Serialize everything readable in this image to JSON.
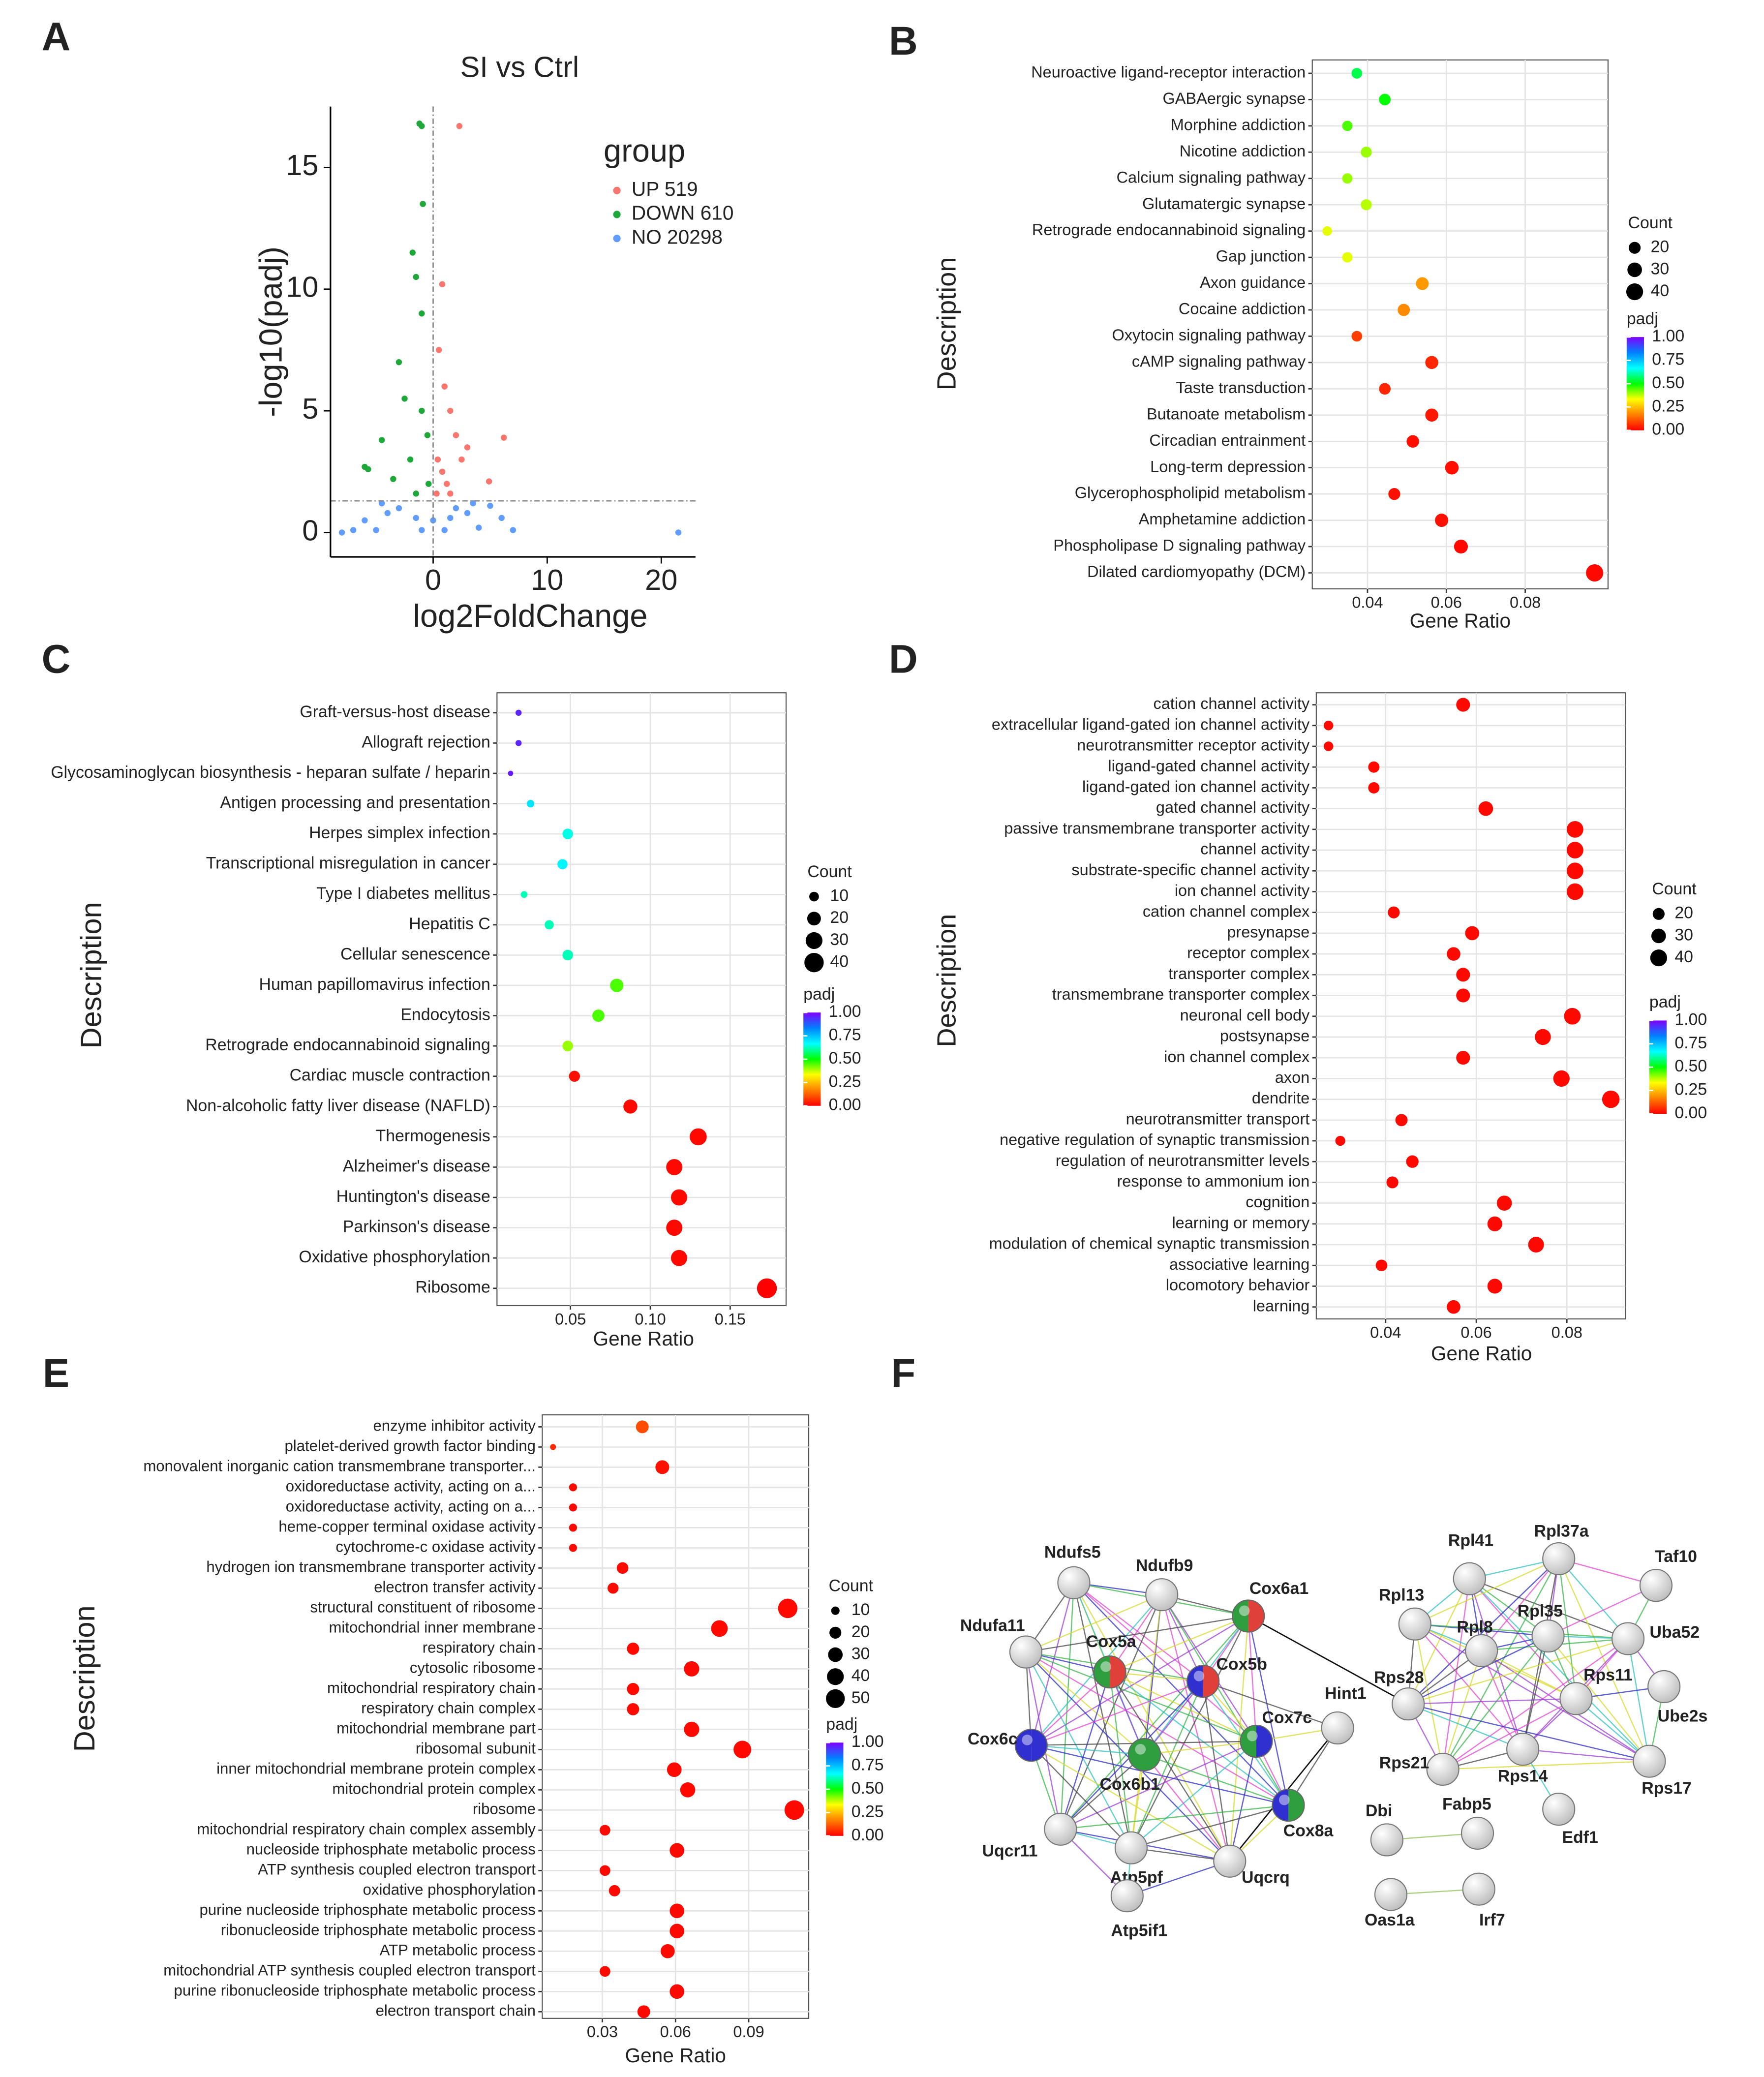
{
  "panels": [
    "A",
    "B",
    "C",
    "D",
    "E",
    "F"
  ],
  "chart_data": [
    {
      "type": "scatter",
      "title": "SI vs Ctrl",
      "xlabel": "log2FoldChange",
      "ylabel": "-log10(padj)",
      "legend_title": "group",
      "xlim": [
        -9,
        23
      ],
      "ylim": [
        -1,
        17.5
      ],
      "xticks": [
        0,
        10,
        20
      ],
      "yticks": [
        0,
        5,
        10,
        15
      ],
      "reference_lines": {
        "x": 0,
        "y": 1.3
      },
      "series": [
        {
          "name": "UP 519",
          "color": "#f8766d",
          "x": [
            2.3,
            0.8,
            0.5,
            1,
            1.5,
            2,
            3,
            6.2,
            4.9,
            0.4,
            0.8,
            1.2,
            2.5,
            0.3,
            1.5
          ],
          "y": [
            16.7,
            10.2,
            7.5,
            6,
            5,
            4,
            3.5,
            3.9,
            2.1,
            3,
            2.5,
            2,
            3,
            1.6,
            1.6
          ]
        },
        {
          "name": "DOWN 610",
          "color": "#1fa83a",
          "x": [
            -1.2,
            -1,
            -0.9,
            -1.8,
            -1.5,
            -1,
            -3,
            -2.5,
            -4.5,
            -5.7,
            -6,
            -3.5,
            -1,
            -0.5,
            -2,
            -0.4,
            -1.5
          ],
          "y": [
            16.8,
            16.7,
            13.5,
            11.5,
            10.5,
            9,
            7,
            5.5,
            3.8,
            2.6,
            2.7,
            2.2,
            5,
            4,
            3,
            2,
            1.6
          ]
        },
        {
          "name": "NO 20298",
          "color": "#619cff",
          "x": [
            -8,
            21.5,
            -6,
            4,
            -3,
            2,
            0,
            -1,
            1,
            3,
            -4,
            5,
            -5,
            7,
            -7,
            1.5,
            -1.5,
            6,
            -4.5,
            3.5
          ],
          "y": [
            0,
            0,
            0.5,
            0.2,
            1,
            1,
            0.5,
            0.1,
            0.1,
            0.8,
            0.8,
            1.1,
            0.1,
            0.1,
            0.1,
            0.6,
            0.6,
            0.6,
            1.2,
            1.2
          ]
        }
      ]
    },
    {
      "type": "dot",
      "xlabel": "Gene Ratio",
      "ylabel": "Description",
      "size_title": "Count",
      "color_title": "padj",
      "xlim": [
        0.026,
        0.101
      ],
      "xticks": [
        0.04,
        0.06,
        0.08
      ],
      "size_ticks": [
        20,
        30,
        40
      ],
      "color_ticks": [
        {
          "value": 1,
          "label": "1.00"
        },
        {
          "value": 0.75,
          "label": "0.75"
        },
        {
          "value": 0.5,
          "label": "0.50"
        },
        {
          "value": 0.25,
          "label": "0.25"
        },
        {
          "value": 0,
          "label": "0.00"
        }
      ],
      "colorscale": [
        "#ff0000",
        "#ff7f00",
        "#ffff00",
        "#00ff00",
        "#00ffff",
        "#0080ff",
        "#8000ff"
      ],
      "categories": [
        "Neuroactive ligand-receptor interaction",
        "GABAergic synapse",
        "Morphine addiction",
        "Nicotine addiction",
        "Calcium signaling pathway",
        "Glutamatergic synapse",
        "Retrograde endocannabinoid signaling",
        "Gap junction",
        "Axon guidance",
        "Cocaine addiction",
        "Oxytocin signaling pathway",
        "cAMP signaling pathway",
        "Taste transduction",
        "Butanoate metabolism",
        "Circadian entrainment",
        "Long-term depression",
        "Glycerophospholipid metabolism",
        "Amphetamine addiction",
        "Phospholipase D signaling pathway",
        "Dilated cardiomyopathy (DCM)"
      ],
      "values": [
        0.0373,
        0.0444,
        0.0349,
        0.0397,
        0.0349,
        0.0397,
        0.0298,
        0.0349,
        0.0539,
        0.0492,
        0.0373,
        0.0563,
        0.0444,
        0.0563,
        0.0515,
        0.0614,
        0.0468,
        0.0588,
        0.0637,
        0.0976
      ],
      "counts": [
        16,
        19,
        15,
        17,
        15,
        17,
        13,
        15,
        23,
        21,
        16,
        24,
        19,
        24,
        22,
        26,
        20,
        25,
        27,
        42
      ],
      "padj": [
        0.55,
        0.5,
        0.45,
        0.4,
        0.4,
        0.38,
        0.35,
        0.35,
        0.2,
        0.18,
        0.08,
        0.05,
        0.05,
        0.03,
        0.02,
        0.02,
        0.02,
        0.02,
        0.01,
        0.01
      ]
    },
    {
      "type": "dot",
      "xlabel": "Gene Ratio",
      "ylabel": "Description",
      "size_title": "Count",
      "color_title": "padj",
      "xlim": [
        0.004,
        0.185
      ],
      "xticks": [
        {
          "value": 0.05,
          "label": "0.05"
        },
        {
          "value": 0.1,
          "label": "0.10"
        },
        {
          "value": 0.15,
          "label": "0.15"
        }
      ],
      "size_ticks": [
        10,
        20,
        30,
        40
      ],
      "color_ticks": [
        {
          "value": 1,
          "label": "1.00"
        },
        {
          "value": 0.75,
          "label": "0.75"
        },
        {
          "value": 0.5,
          "label": "0.50"
        },
        {
          "value": 0.25,
          "label": "0.25"
        },
        {
          "value": 0,
          "label": "0.00"
        }
      ],
      "colorscale": [
        "#ff0000",
        "#ff7f00",
        "#ffff00",
        "#00ff00",
        "#00ffff",
        "#0080ff",
        "#8000ff"
      ],
      "categories": [
        "Graft-versus-host disease",
        "Allograft rejection",
        "Glycosaminoglycan biosynthesis - heparan sulfate / heparin",
        "Antigen processing and presentation",
        "Herpes simplex infection",
        "Transcriptional misregulation in cancer",
        "Type I diabetes mellitus",
        "Hepatitis C",
        "Cellular senescence",
        "Human papillomavirus infection",
        "Endocytosis",
        "Retrograde endocannabinoid signaling",
        "Cardiac muscle contraction",
        "Non-alcoholic fatty liver disease (NAFLD)",
        "Thermogenesis",
        "Alzheimer's disease",
        "Huntington's disease",
        "Parkinson's disease",
        "Oxidative phosphorylation",
        "Ribosome"
      ],
      "values": [
        0.0175,
        0.0175,
        0.0125,
        0.025,
        0.0483,
        0.045,
        0.021,
        0.0367,
        0.0483,
        0.079,
        0.0675,
        0.0483,
        0.0525,
        0.0875,
        0.13,
        0.115,
        0.118,
        0.115,
        0.118,
        0.173
      ],
      "counts": [
        4,
        4,
        3,
        6,
        12,
        11,
        5,
        9,
        12,
        19,
        16,
        12,
        13,
        21,
        31,
        28,
        28,
        28,
        28,
        42
      ],
      "padj": [
        0.95,
        0.95,
        0.97,
        0.7,
        0.65,
        0.68,
        0.62,
        0.62,
        0.62,
        0.45,
        0.45,
        0.4,
        0.02,
        0.01,
        0.01,
        0.01,
        0.01,
        0.01,
        0.01,
        0
      ]
    },
    {
      "type": "dot",
      "xlabel": "Gene Ratio",
      "ylabel": "Description",
      "size_title": "Count",
      "color_title": "padj",
      "xlim": [
        0.0247,
        0.0929
      ],
      "xticks": [
        0.04,
        0.06,
        0.08
      ],
      "size_ticks": [
        20,
        30,
        40
      ],
      "color_ticks": [
        {
          "value": 1,
          "label": "1.00"
        },
        {
          "value": 0.75,
          "label": "0.75"
        },
        {
          "value": 0.5,
          "label": "0.50"
        },
        {
          "value": 0.25,
          "label": "0.25"
        },
        {
          "value": 0,
          "label": "0.00"
        }
      ],
      "colorscale": [
        "#ff0000",
        "#ff7f00",
        "#ffff00",
        "#00ff00",
        "#00ffff",
        "#0080ff",
        "#8000ff"
      ],
      "categories": [
        "cation channel activity",
        "extracellular ligand-gated ion channel activity",
        "neurotransmitter receptor activity",
        "ligand-gated channel activity",
        "ligand-gated ion channel activity",
        "gated channel activity",
        "passive transmembrane transporter activity",
        "channel activity",
        "substrate-specific channel activity",
        "ion channel activity",
        "cation channel complex",
        "presynapse",
        "receptor complex",
        "transporter complex",
        "transmembrane transporter complex",
        "neuronal cell body",
        "postsynapse",
        "ion channel complex",
        "axon",
        "dendrite",
        "neurotransmitter transport",
        "negative regulation of synaptic transmission",
        "regulation of neurotransmitter levels",
        "response to ammonium ion",
        "cognition",
        "learning or memory",
        "modulation of chemical synaptic transmission",
        "associative learning",
        "locomotory behavior",
        "learning"
      ],
      "values": [
        0.0571,
        0.0274,
        0.0274,
        0.0374,
        0.0374,
        0.0621,
        0.0818,
        0.0818,
        0.0818,
        0.0818,
        0.0418,
        0.0591,
        0.055,
        0.0571,
        0.0571,
        0.0812,
        0.0747,
        0.0571,
        0.0788,
        0.0897,
        0.0435,
        0.03,
        0.0459,
        0.0415,
        0.0662,
        0.0641,
        0.0732,
        0.0391,
        0.0641,
        0.055
      ],
      "counts": [
        27,
        13,
        13,
        18,
        18,
        30,
        39,
        39,
        39,
        39,
        20,
        28,
        26,
        27,
        27,
        39,
        36,
        27,
        38,
        43,
        21,
        14,
        22,
        20,
        32,
        31,
        35,
        19,
        31,
        26
      ],
      "padj": [
        0.01,
        0.01,
        0.01,
        0.01,
        0.01,
        0.01,
        0.01,
        0.01,
        0.01,
        0.01,
        0.01,
        0.01,
        0.01,
        0.01,
        0.01,
        0.01,
        0.01,
        0.01,
        0.01,
        0.01,
        0.01,
        0.01,
        0.01,
        0.01,
        0.01,
        0.01,
        0.01,
        0.01,
        0.01,
        0.01
      ]
    },
    {
      "type": "dot",
      "xlabel": "Gene Ratio",
      "ylabel": "Description",
      "size_title": "Count",
      "color_title": "padj",
      "xlim": [
        0.0054,
        0.1146
      ],
      "xticks": [
        0.03,
        0.06,
        0.09
      ],
      "size_ticks": [
        10,
        20,
        30,
        40,
        50
      ],
      "color_ticks": [
        {
          "value": 1,
          "label": "1.00"
        },
        {
          "value": 0.75,
          "label": "0.75"
        },
        {
          "value": 0.5,
          "label": "0.50"
        },
        {
          "value": 0.25,
          "label": "0.25"
        },
        {
          "value": 0,
          "label": "0.00"
        }
      ],
      "colorscale": [
        "#ff0000",
        "#ff7f00",
        "#ffff00",
        "#00ff00",
        "#00ffff",
        "#0080ff",
        "#8000ff"
      ],
      "categories": [
        "enzyme inhibitor activity",
        "platelet-derived growth factor binding",
        "monovalent inorganic cation transmembrane transporter...",
        "oxidoreductase activity, acting on a...",
        "oxidoreductase activity, acting on a...",
        "heme-copper terminal oxidase activity",
        "cytochrome-c oxidase activity",
        "hydrogen ion transmembrane transporter activity",
        "electron transfer activity",
        "structural constituent of ribosome",
        "mitochondrial inner membrane",
        "respiratory chain",
        "cytosolic ribosome",
        "mitochondrial respiratory chain",
        "respiratory chain complex",
        "mitochondrial membrane part",
        "ribosomal subunit",
        "inner mitochondrial membrane protein complex",
        "mitochondrial protein complex",
        "ribosome",
        "mitochondrial respiratory chain complex assembly",
        "nucleoside triphosphate metabolic process",
        "ATP synthesis coupled electron transport",
        "oxidative phosphorylation",
        "purine nucleoside triphosphate metabolic process",
        "ribonucleoside triphosphate metabolic process",
        "ATP metabolic process",
        "mitochondrial ATP synthesis coupled electron transport",
        "purine ribonucleoside triphosphate metabolic process",
        "electron transport chain"
      ],
      "values": [
        0.0464,
        0.0098,
        0.0546,
        0.018,
        0.018,
        0.018,
        0.018,
        0.0383,
        0.0344,
        0.106,
        0.078,
        0.0426,
        0.0666,
        0.0426,
        0.0426,
        0.0666,
        0.0874,
        0.0595,
        0.065,
        0.1087,
        0.0311,
        0.0606,
        0.0311,
        0.035,
        0.0606,
        0.0606,
        0.0568,
        0.0311,
        0.0606,
        0.047
      ],
      "counts": [
        23,
        5,
        27,
        9,
        9,
        9,
        9,
        19,
        17,
        53,
        39,
        21,
        33,
        21,
        21,
        33,
        44,
        30,
        32,
        54,
        16,
        30,
        16,
        18,
        30,
        30,
        28,
        16,
        30,
        23
      ],
      "padj": [
        0.1,
        0.05,
        0.02,
        0.01,
        0.01,
        0.01,
        0.01,
        0.01,
        0.01,
        0.01,
        0.01,
        0.01,
        0.01,
        0.01,
        0.01,
        0.01,
        0.01,
        0.01,
        0.01,
        0.01,
        0.01,
        0.01,
        0.01,
        0.01,
        0.01,
        0.01,
        0.01,
        0.01,
        0.01,
        0.01
      ]
    }
  ],
  "network": {
    "nodes": [
      "Ndufs5",
      "Ndufb9",
      "Cox6a1",
      "Ndufa11",
      "Cox5a",
      "Cox5b",
      "Hint1",
      "Cox7c",
      "Cox6c",
      "Cox6b1",
      "Cox8a",
      "Uqcr11",
      "Atp5pf",
      "Uqcrq",
      "Atp5if1",
      "Rpl41",
      "Rpl37a",
      "Taf10",
      "Rpl13",
      "Rpl8",
      "Rpl35",
      "Uba52",
      "Rps28",
      "Rps11",
      "Ube2s",
      "Rps21",
      "Rps14",
      "Rps17",
      "Edf1",
      "Dbi",
      "Fabp5",
      "Oas1a",
      "Irf7"
    ]
  }
}
